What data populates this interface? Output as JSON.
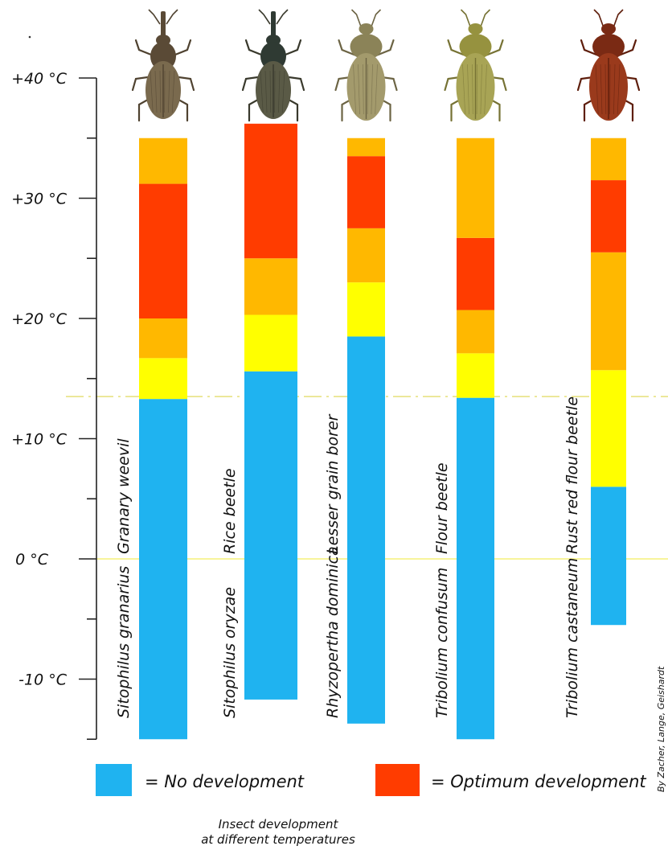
{
  "chart_data": {
    "type": "bar",
    "subtype": "stacked-range",
    "caption": [
      "Insect development",
      "at different temperatures"
    ],
    "credit": "By Zacher, Lange, Geishardt",
    "axis": {
      "ticks": [
        {
          "value": 40,
          "label": "+40 °C"
        },
        {
          "value": 30,
          "label": "+30 °C"
        },
        {
          "value": 20,
          "label": "+20 °C"
        },
        {
          "value": 10,
          "label": "+10 °C"
        },
        {
          "value": 0,
          "label": "0 °C"
        },
        {
          "value": -10,
          "label": "-10 °C"
        }
      ],
      "minor_ticks": [
        35,
        25,
        15,
        5,
        -5,
        -15
      ],
      "range": [
        -16,
        42
      ]
    },
    "reference_lines": [
      {
        "value": 0,
        "style": "solid",
        "color": "#f5f07a"
      },
      {
        "value": 13.5,
        "style": "dash-dot",
        "color": "#e6e07a"
      }
    ],
    "colors": {
      "no_development": "#1fb3f0",
      "yellow": "#ffff00",
      "orange": "#ffb800",
      "optimum": "#ff3c00"
    },
    "legend": [
      {
        "key": "no_development",
        "label": "= No development"
      },
      {
        "key": "optimum",
        "label": "= Optimum development"
      }
    ],
    "species": [
      {
        "common": "Granary weevil",
        "latin": "Sitophilus granarius",
        "segments": [
          {
            "from": -15,
            "to": 13.3,
            "color": "no_development"
          },
          {
            "from": 13.3,
            "to": 16.7,
            "color": "yellow"
          },
          {
            "from": 16.7,
            "to": 20,
            "color": "orange"
          },
          {
            "from": 20,
            "to": 31.2,
            "color": "optimum"
          },
          {
            "from": 31.2,
            "to": 35,
            "color": "orange"
          }
        ]
      },
      {
        "common": "Rice beetle",
        "latin": "Sitophilus oryzae",
        "segments": [
          {
            "from": -11.7,
            "to": 15.6,
            "color": "no_development"
          },
          {
            "from": 15.6,
            "to": 20.3,
            "color": "yellow"
          },
          {
            "from": 20.3,
            "to": 25,
            "color": "orange"
          },
          {
            "from": 25,
            "to": 36.2,
            "color": "optimum"
          }
        ]
      },
      {
        "common": "Lesser grain borer",
        "latin": "Rhyzopertha dominica",
        "segments": [
          {
            "from": -13.7,
            "to": 18.5,
            "color": "no_development"
          },
          {
            "from": 18.5,
            "to": 23,
            "color": "yellow"
          },
          {
            "from": 23,
            "to": 27.5,
            "color": "orange"
          },
          {
            "from": 27.5,
            "to": 33.5,
            "color": "optimum"
          },
          {
            "from": 33.5,
            "to": 35,
            "color": "orange"
          }
        ]
      },
      {
        "common": "Flour beetle",
        "latin": "Tribolium confusum",
        "segments": [
          {
            "from": -15,
            "to": 13.4,
            "color": "no_development"
          },
          {
            "from": 13.4,
            "to": 17.1,
            "color": "yellow"
          },
          {
            "from": 17.1,
            "to": 20.7,
            "color": "orange"
          },
          {
            "from": 20.7,
            "to": 26.7,
            "color": "optimum"
          },
          {
            "from": 26.7,
            "to": 35,
            "color": "orange"
          }
        ]
      },
      {
        "common": "Rust red flour beetle",
        "latin": "Tribolium castaneum",
        "segments": [
          {
            "from": -5.5,
            "to": 6,
            "color": "no_development"
          },
          {
            "from": 6,
            "to": 15.7,
            "color": "yellow"
          },
          {
            "from": 15.7,
            "to": 25.5,
            "color": "orange"
          },
          {
            "from": 25.5,
            "to": 31.5,
            "color": "optimum"
          },
          {
            "from": 31.5,
            "to": 35,
            "color": "orange"
          }
        ]
      }
    ],
    "beetle_icons": [
      {
        "icon": "granary-weevil-icon",
        "body": "#7a6a4e",
        "shade": "#4f4230",
        "head": "#5a4a36",
        "snout": true
      },
      {
        "icon": "rice-beetle-icon",
        "body": "#5a5a46",
        "shade": "#39392c",
        "head": "#2f3a33",
        "snout": true
      },
      {
        "icon": "lesser-grain-borer-icon",
        "body": "#a39a6c",
        "shade": "#6c6444",
        "head": "#8b8358",
        "snout": false
      },
      {
        "icon": "flour-beetle-icon",
        "body": "#a8a455",
        "shade": "#767234",
        "head": "#96923f",
        "snout": false
      },
      {
        "icon": "rust-red-flour-beetle-icon",
        "body": "#9a3a1c",
        "shade": "#5e1e0c",
        "head": "#7a2a14",
        "snout": false
      }
    ]
  }
}
